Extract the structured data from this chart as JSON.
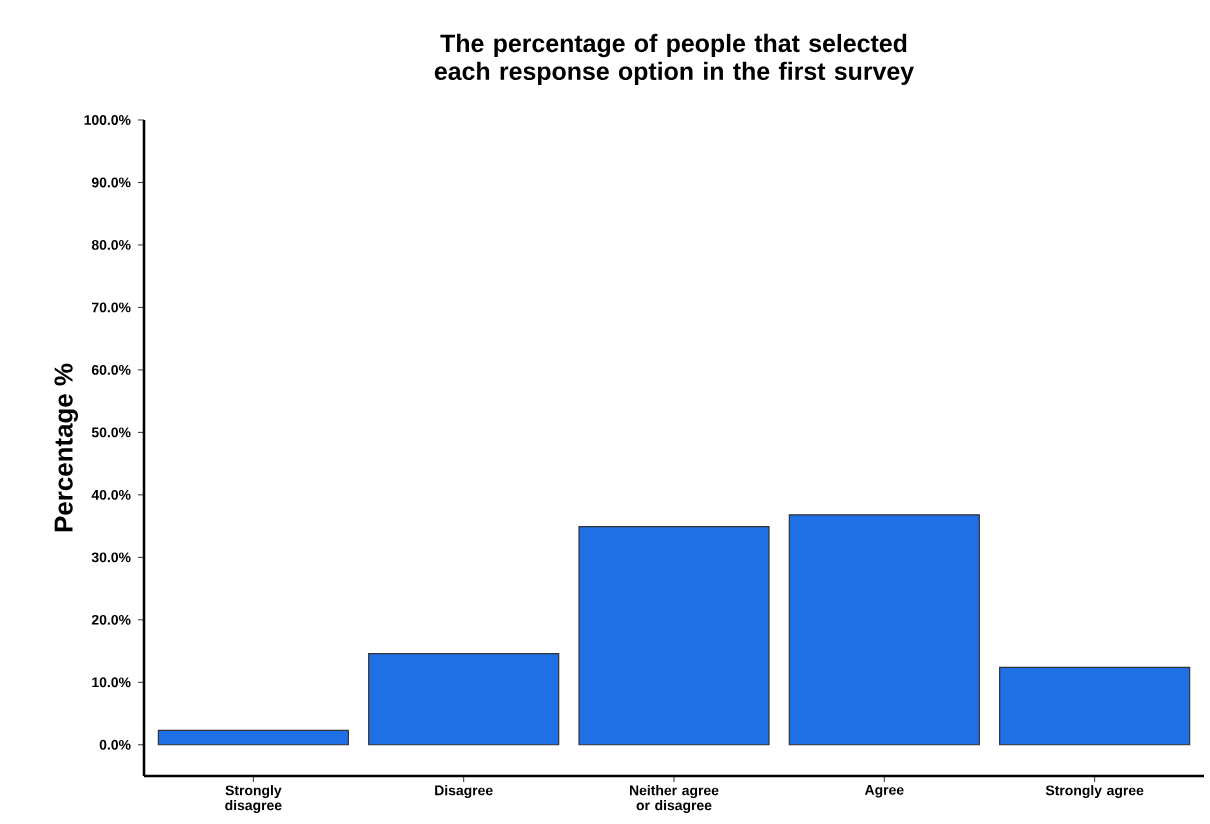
{
  "chart_data": {
    "type": "bar",
    "title": "The percentage of people that selected each response option in the first survey",
    "ylabel": "Percentage %",
    "categories": [
      "Strongly disagree",
      "Disagree",
      "Neither agree or disagree",
      "Agree",
      "Strongly agree"
    ],
    "values": [
      2.3,
      14.6,
      34.9,
      36.8,
      12.4
    ],
    "color": "#1f6fe5",
    "ylim": [
      -5,
      100
    ],
    "yticks": [
      {
        "value": 0,
        "label": "0.0%"
      },
      {
        "value": 10,
        "label": "10.0%"
      },
      {
        "value": 20,
        "label": "20.0%"
      },
      {
        "value": 30,
        "label": "30.0%"
      },
      {
        "value": 40,
        "label": "40.0%"
      },
      {
        "value": 50,
        "label": "50.0%"
      },
      {
        "value": 60,
        "label": "60.0%"
      },
      {
        "value": 70,
        "label": "70.0%"
      },
      {
        "value": 80,
        "label": "80.0%"
      },
      {
        "value": 90,
        "label": "90.0%"
      },
      {
        "value": 100,
        "label": "100.0%"
      }
    ],
    "grid": false
  }
}
